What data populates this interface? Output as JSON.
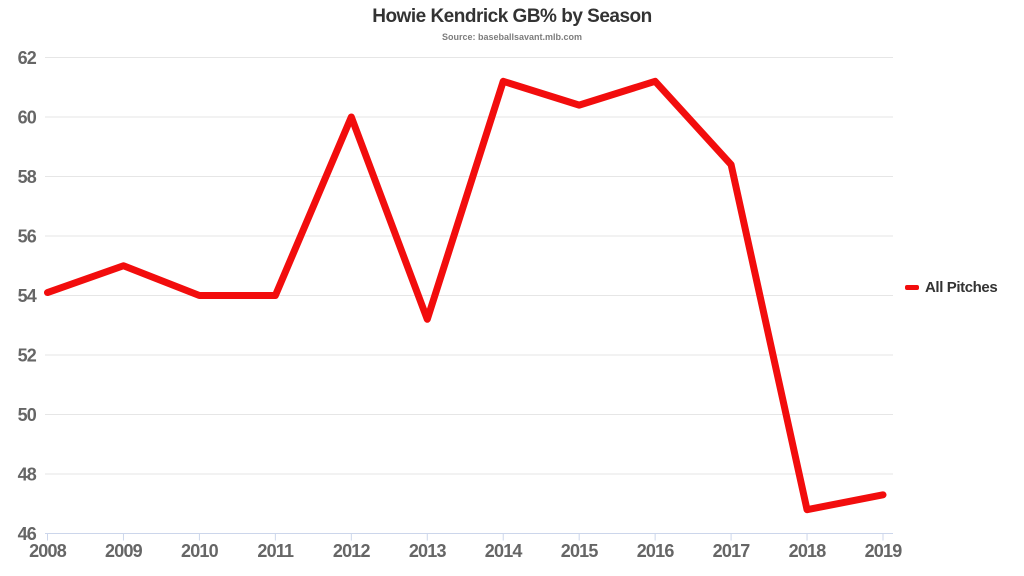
{
  "chart_data": {
    "type": "line",
    "title": "Howie Kendrick GB% by Season",
    "subtitle": "Source: baseballsavant.mlb.com",
    "categories": [
      "2008",
      "2009",
      "2010",
      "2011",
      "2012",
      "2013",
      "2014",
      "2015",
      "2016",
      "2017",
      "2018",
      "2019"
    ],
    "series": [
      {
        "name": "All Pitches",
        "color": "#f20d0d",
        "values": [
          54.1,
          55.0,
          54.0,
          54.0,
          60.0,
          53.2,
          61.2,
          60.4,
          61.2,
          58.4,
          46.8,
          47.3
        ]
      }
    ],
    "xlabel": "",
    "ylabel": "",
    "ylim": [
      46,
      62
    ],
    "ytick_step": 2,
    "grid": "horizontal",
    "legend_position": "right",
    "colors": {
      "grid_line": "#e6e6e6",
      "axis_line": "#ccd6eb",
      "tick_label": "#666666",
      "title": "#333333",
      "subtitle": "#7d7d7d"
    }
  }
}
